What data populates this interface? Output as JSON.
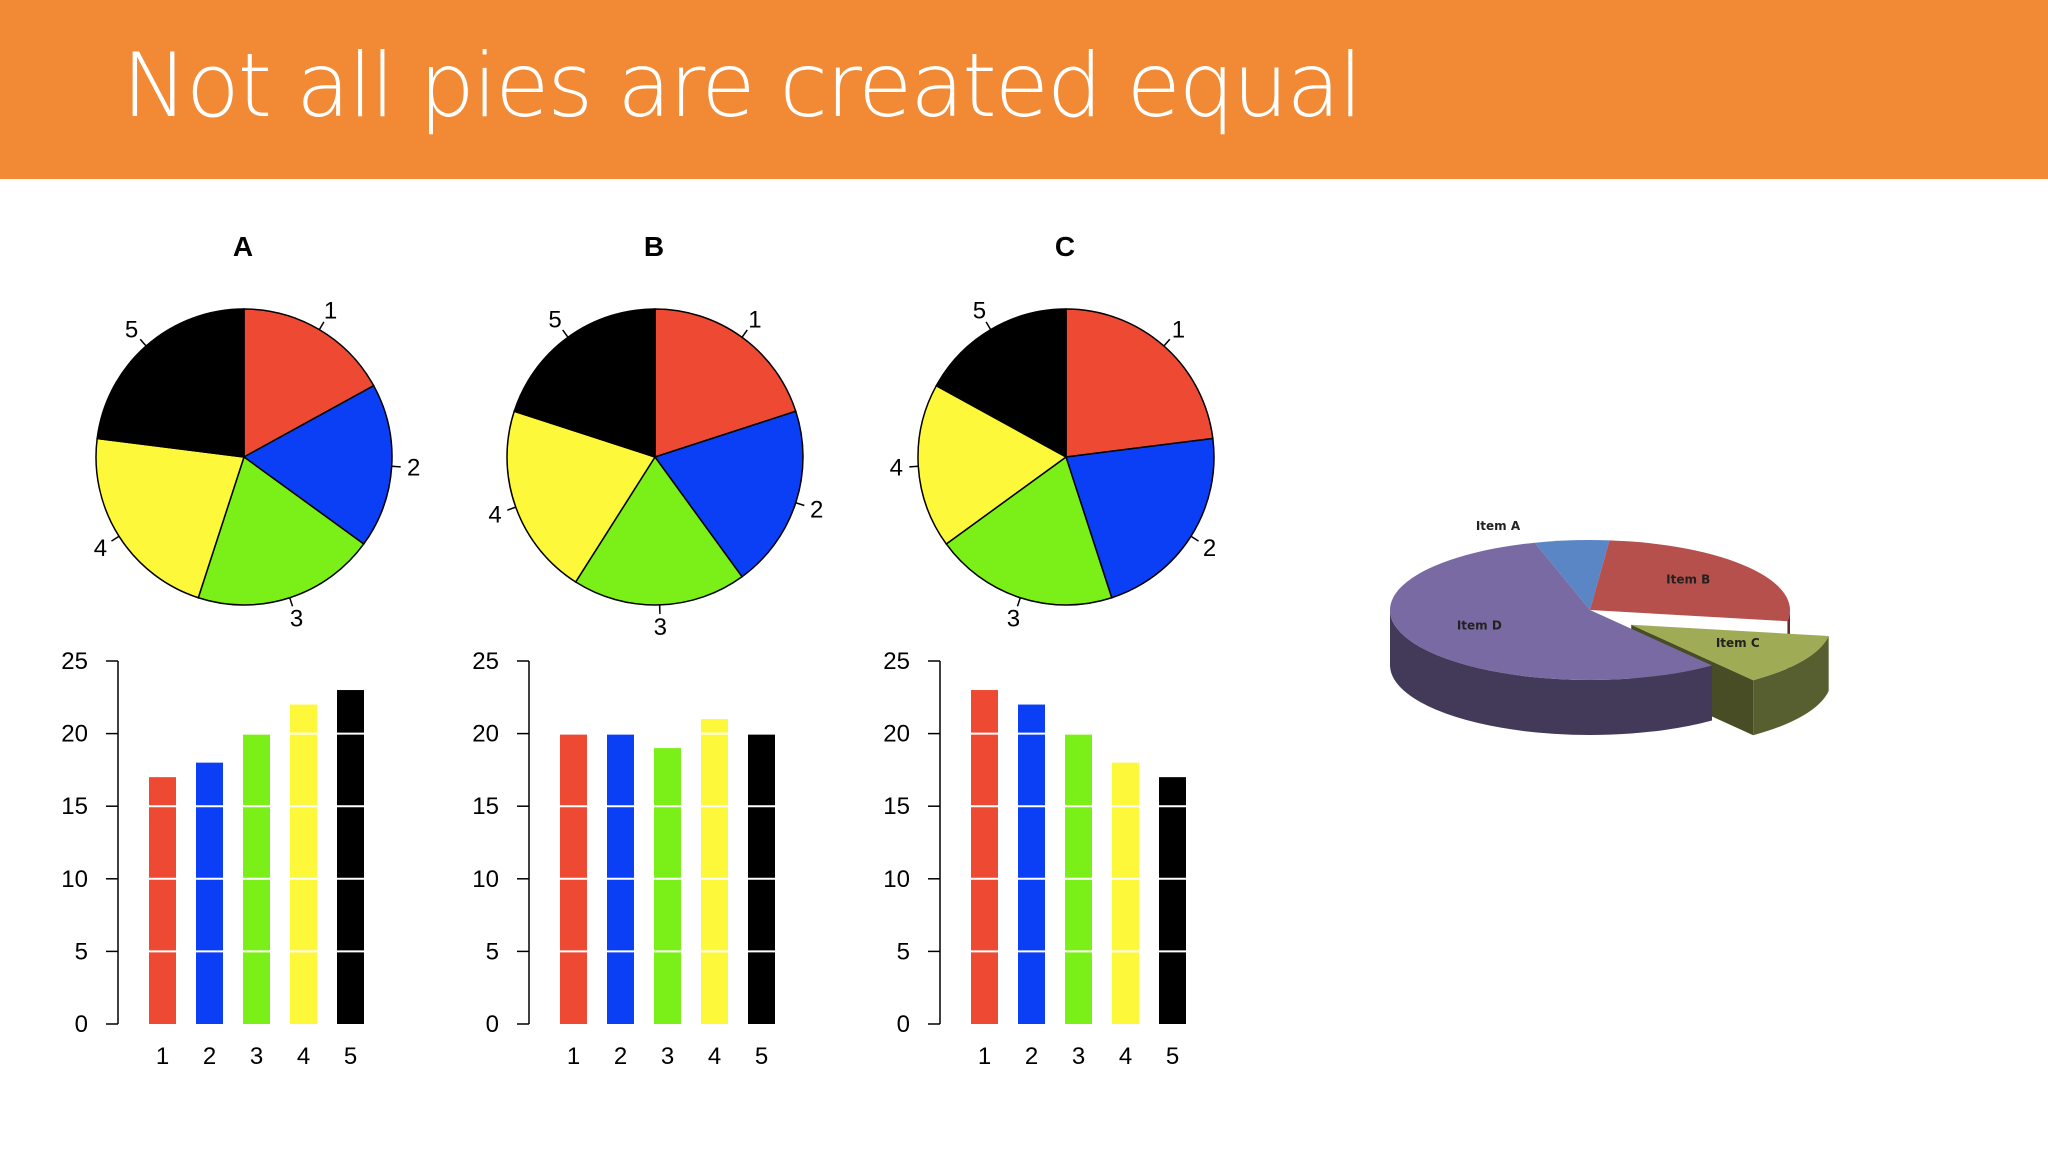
{
  "slide": {
    "title": "Not all pies are created equal"
  },
  "colors": {
    "header_bg": "#f28a35",
    "series": [
      "#ee4932",
      "#0a3ff5",
      "#7bf018",
      "#fef83a",
      "#000000"
    ]
  },
  "chart_data": [
    {
      "type": "pie",
      "panel": "A",
      "title": "A",
      "categories": [
        "1",
        "2",
        "3",
        "4",
        "5"
      ],
      "values": [
        17,
        18,
        20,
        22,
        23
      ]
    },
    {
      "type": "pie",
      "panel": "B",
      "title": "B",
      "categories": [
        "1",
        "2",
        "3",
        "4",
        "5"
      ],
      "values": [
        20,
        20,
        19,
        21,
        20
      ]
    },
    {
      "type": "pie",
      "panel": "C",
      "title": "C",
      "categories": [
        "1",
        "2",
        "3",
        "4",
        "5"
      ],
      "values": [
        23,
        22,
        20,
        18,
        17
      ]
    },
    {
      "type": "bar",
      "panel": "A",
      "categories": [
        "1",
        "2",
        "3",
        "4",
        "5"
      ],
      "values": [
        17,
        18,
        20,
        22,
        23
      ],
      "ylim": [
        0,
        25
      ],
      "yticks": [
        0,
        5,
        10,
        15,
        20,
        25
      ],
      "grid": "white horizontal lines over bars"
    },
    {
      "type": "bar",
      "panel": "B",
      "categories": [
        "1",
        "2",
        "3",
        "4",
        "5"
      ],
      "values": [
        20,
        20,
        19,
        21,
        20
      ],
      "ylim": [
        0,
        25
      ],
      "yticks": [
        0,
        5,
        10,
        15,
        20,
        25
      ],
      "grid": "white horizontal lines over bars"
    },
    {
      "type": "bar",
      "panel": "C",
      "categories": [
        "1",
        "2",
        "3",
        "4",
        "5"
      ],
      "values": [
        23,
        22,
        20,
        18,
        17
      ],
      "ylim": [
        0,
        25
      ],
      "yticks": [
        0,
        5,
        10,
        15,
        20,
        25
      ],
      "grid": "white horizontal lines over bars"
    },
    {
      "type": "pie",
      "style": "3d-exploded",
      "categories": [
        "Item A",
        "Item B",
        "Item C",
        "Item D"
      ],
      "values": [
        6,
        26,
        12,
        56
      ],
      "colors": [
        "#5a86c6",
        "#b5504c",
        "#9fab55",
        "#7a6aa3"
      ],
      "exploded": "Item C"
    }
  ]
}
